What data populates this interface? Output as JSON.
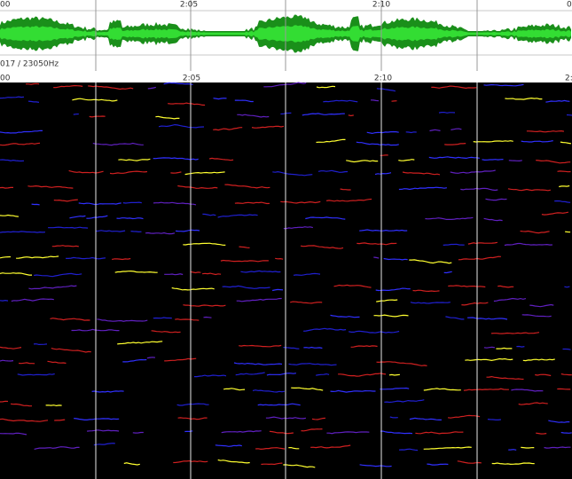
{
  "waveform": {
    "ruler_labels": [
      "00",
      "2:05",
      "2:10",
      "0"
    ]
  },
  "spectrogram": {
    "info": "017 / 23050Hz",
    "ruler_labels": [
      "00",
      "2:05",
      "2:10",
      "2:"
    ]
  }
}
